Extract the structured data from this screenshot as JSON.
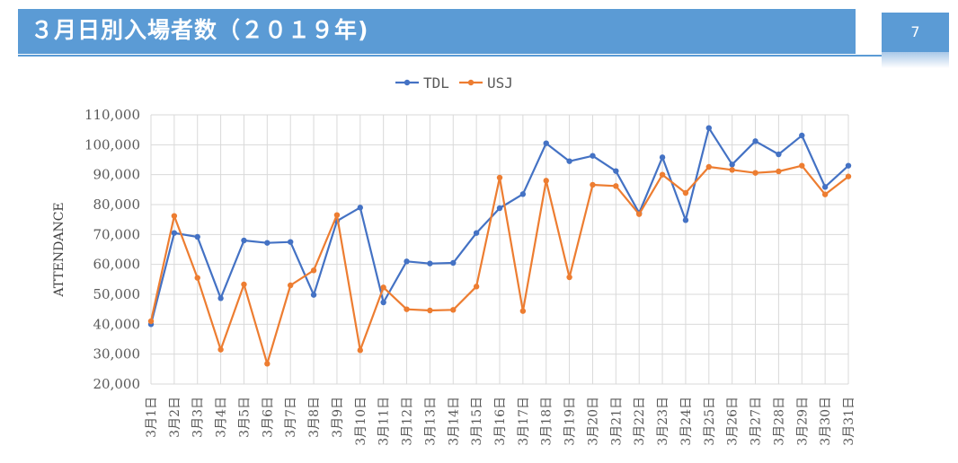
{
  "slide": {
    "title": "３月日別入場者数（２０１９年)",
    "page_number": "7"
  },
  "colors": {
    "accent": "#5b9bd5",
    "tdl": "#4472c4",
    "usj": "#ed7d31"
  },
  "chart_data": {
    "type": "line",
    "title": "",
    "xlabel": "",
    "ylabel": "ATTENDANCE",
    "ylim": [
      20000,
      110000
    ],
    "yticks": [
      "110,000",
      "100,000",
      "90,000",
      "80,000",
      "70,000",
      "60,000",
      "50,000",
      "40,000",
      "30,000",
      "20,000"
    ],
    "grid": true,
    "legend_position": "top-center",
    "categories": [
      "3月1日",
      "3月2日",
      "3月3日",
      "3月4日",
      "3月5日",
      "3月6日",
      "3月7日",
      "3月8日",
      "3月9日",
      "3月10日",
      "3月11日",
      "3月12日",
      "3月13日",
      "3月14日",
      "3月15日",
      "3月16日",
      "3月17日",
      "3月18日",
      "3月19日",
      "3月20日",
      "3月21日",
      "3月22日",
      "3月23日",
      "3月24日",
      "3月25日",
      "3月26日",
      "3月27日",
      "3月28日",
      "3月29日",
      "3月30日",
      "3月31日"
    ],
    "series": [
      {
        "name": "TDL",
        "values": [
          40000,
          70500,
          69200,
          48700,
          68000,
          67200,
          67500,
          49800,
          74500,
          79000,
          47300,
          61000,
          60300,
          60500,
          70500,
          78800,
          83500,
          100500,
          94500,
          96300,
          91200,
          77200,
          95800,
          74800,
          105600,
          93400,
          101200,
          96800,
          103100,
          85900,
          93000
        ]
      },
      {
        "name": "USJ",
        "values": [
          41000,
          76200,
          55500,
          31500,
          53300,
          26800,
          53000,
          58000,
          76500,
          31300,
          52300,
          45000,
          44600,
          44800,
          52600,
          89000,
          44400,
          88000,
          55700,
          86600,
          86200,
          76800,
          90000,
          83900,
          92600,
          91600,
          90600,
          91100,
          93000,
          83400,
          89400
        ]
      }
    ]
  }
}
